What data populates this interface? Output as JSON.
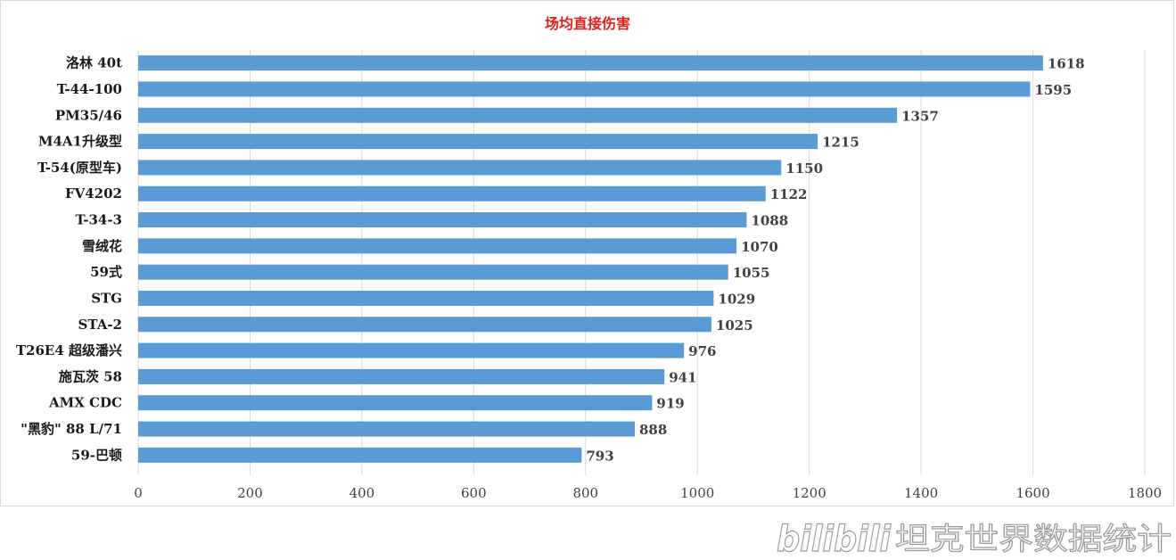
{
  "chart_data": {
    "type": "bar",
    "orientation": "horizontal",
    "title": "场均直接伤害",
    "xlabel": "",
    "ylabel": "",
    "xlim": [
      0,
      1800
    ],
    "x_ticks": [
      0,
      200,
      400,
      600,
      800,
      1000,
      1200,
      1400,
      1600,
      1800
    ],
    "grid": "vertical",
    "categories": [
      "洛林 40t",
      "T-44-100",
      "PM35/46",
      "M4A1升级型",
      "T-54(原型车)",
      "FV4202",
      "T-34-3",
      "雪绒花",
      "59式",
      "STG",
      "STA-2",
      "T26E4 超级潘兴",
      "施瓦茨 58",
      "AMX CDC",
      "\"黑豹\" 88 L/71",
      "59-巴顿"
    ],
    "values": [
      1618,
      1595,
      1357,
      1215,
      1150,
      1122,
      1088,
      1070,
      1055,
      1029,
      1025,
      976,
      941,
      919,
      888,
      793
    ],
    "colors": {
      "bar": "#5b9bd5",
      "title": "#e0201b",
      "grid": "#d9d9d9"
    }
  },
  "watermark": {
    "logo": "bilibili",
    "text": "坦克世界数据统计"
  }
}
